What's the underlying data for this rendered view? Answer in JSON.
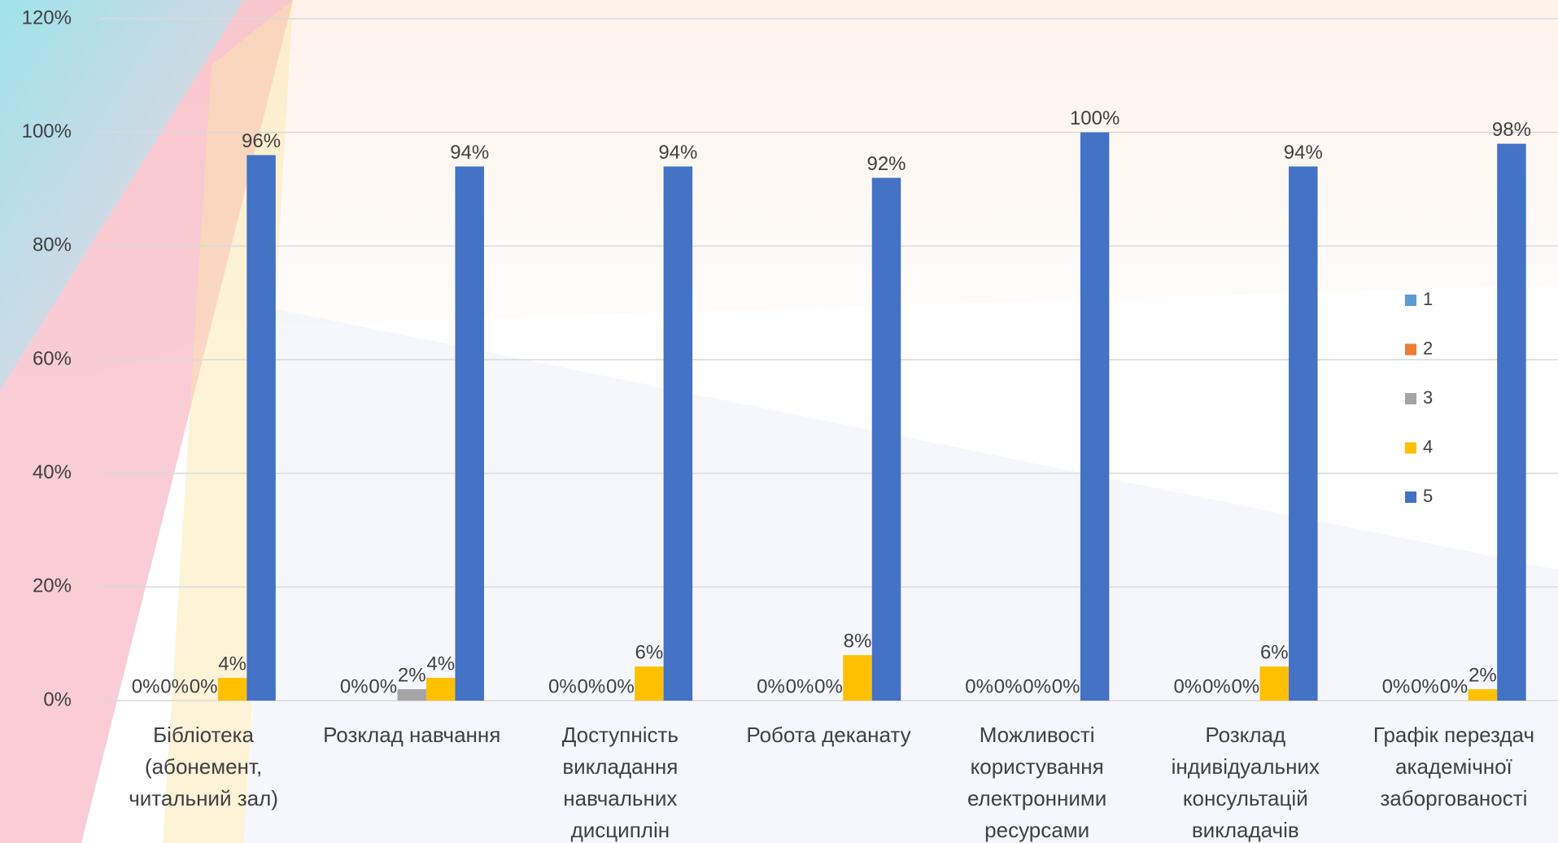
{
  "chart_data": {
    "type": "bar",
    "categories": [
      "Бібліотека (абонемент, читальний зал)",
      "Розклад навчання",
      "Доступність викладання навчальних дисциплін",
      "Робота деканату",
      "Можливості користування електронними ресурсами",
      "Розклад індивідуальних консультацій викладачів",
      "Графік перездач академічної заборгованості"
    ],
    "series": [
      {
        "name": "1",
        "color": "#5b9bd5",
        "values": [
          0,
          0,
          0,
          0,
          0,
          0,
          0
        ],
        "value_labels": [
          "0%",
          "0%",
          "0%",
          "0%",
          "0%",
          "0%",
          "0%"
        ]
      },
      {
        "name": "2",
        "color": "#ed7d31",
        "values": [
          0,
          0,
          0,
          0,
          0,
          0,
          0
        ],
        "value_labels": [
          "0%",
          "0%",
          "0%",
          "0%",
          "0%",
          "0%",
          "0%"
        ]
      },
      {
        "name": "3",
        "color": "#a5a5a5",
        "values": [
          0,
          2,
          0,
          0,
          0,
          0,
          0
        ],
        "value_labels": [
          "0%",
          "2%",
          "0%",
          "0%",
          "0%",
          "0%",
          "0%"
        ]
      },
      {
        "name": "4",
        "color": "#ffc000",
        "values": [
          4,
          4,
          6,
          8,
          0,
          6,
          2
        ],
        "value_labels": [
          "4%",
          "4%",
          "6%",
          "8%",
          "0%",
          "6%",
          "2%"
        ]
      },
      {
        "name": "5",
        "color": "#4472c4",
        "values": [
          96,
          94,
          94,
          92,
          100,
          94,
          98
        ],
        "value_labels": [
          "96%",
          "94%",
          "94%",
          "92%",
          "100%",
          "94%",
          "98%"
        ]
      }
    ],
    "ylim": [
      0,
      120
    ],
    "yticks": [
      {
        "value": 0,
        "label": "0%"
      },
      {
        "value": 20,
        "label": "20%"
      },
      {
        "value": 40,
        "label": "40%"
      },
      {
        "value": 60,
        "label": "60%"
      },
      {
        "value": 80,
        "label": "80%"
      },
      {
        "value": 100,
        "label": "100%"
      },
      {
        "value": 120,
        "label": "120%"
      }
    ],
    "grid": true,
    "legend": "right"
  }
}
